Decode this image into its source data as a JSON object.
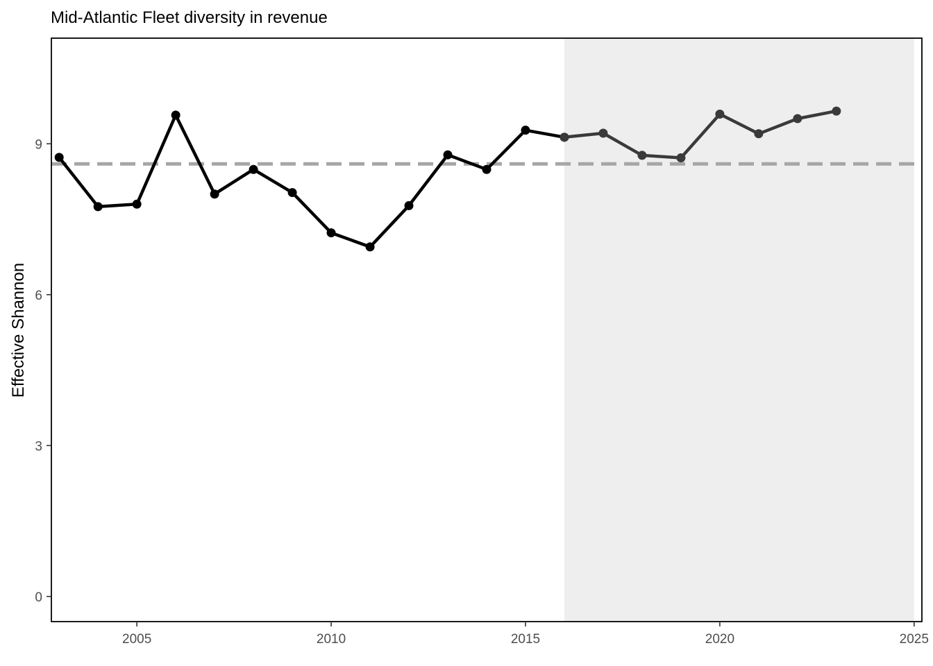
{
  "chart_data": {
    "type": "line",
    "title": "Mid-Atlantic Fleet diversity in revenue",
    "xlabel": "",
    "ylabel": "Effective Shannon",
    "xlim": [
      2002.8,
      2025.2
    ],
    "ylim": [
      -0.5,
      11.1
    ],
    "x_ticks": [
      "2005",
      "2010",
      "2015",
      "2020",
      "2025"
    ],
    "y_ticks": [
      "0",
      "3",
      "6",
      "9"
    ],
    "grid": false,
    "legend": "none",
    "shaded_region": {
      "x_start": 2016,
      "x_end": 2025,
      "color": "#eeeeee"
    },
    "reference_line": {
      "y": 8.6,
      "style": "dashed",
      "color": "#a6a6a6"
    },
    "series": [
      {
        "color": "#000000",
        "x": [
          2003,
          2004,
          2005,
          2006,
          2007,
          2008,
          2009,
          2010,
          2011,
          2012,
          2013,
          2014,
          2015,
          2016
        ],
        "y": [
          8.73,
          7.75,
          7.8,
          9.57,
          8.0,
          8.49,
          8.03,
          7.23,
          6.95,
          7.77,
          8.78,
          8.49,
          9.27,
          9.13
        ]
      },
      {
        "color": "#3a3a3a",
        "x": [
          2016,
          2017,
          2018,
          2019,
          2020,
          2021,
          2022,
          2023
        ],
        "y": [
          9.13,
          9.21,
          8.77,
          8.72,
          9.59,
          9.2,
          9.5,
          9.65
        ]
      }
    ]
  }
}
